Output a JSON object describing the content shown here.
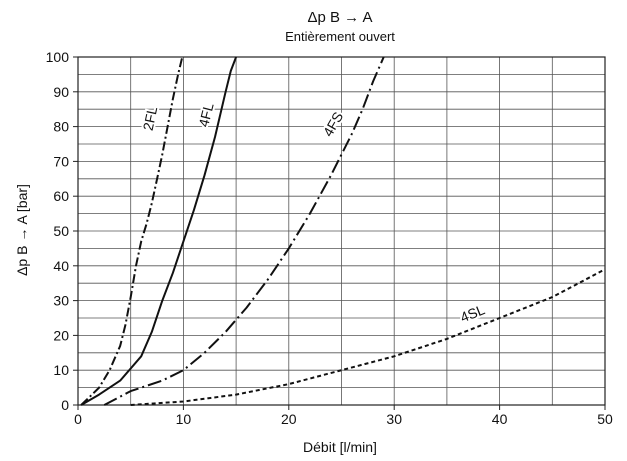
{
  "chart_data": {
    "type": "line",
    "title": "Δp B → A",
    "subtitle": "Entièrement ouvert",
    "xlabel": "Débit [l/min]",
    "ylabel": "Δp B → A [bar]",
    "xlim": [
      0,
      50
    ],
    "ylim": [
      0,
      100
    ],
    "xticks": [
      "0",
      "10",
      "20",
      "30",
      "40",
      "50"
    ],
    "yticks": [
      "0",
      "10",
      "20",
      "30",
      "40",
      "50",
      "60",
      "70",
      "80",
      "90",
      "100"
    ],
    "grid": true,
    "series": [
      {
        "name": "2FL",
        "style": "dash-dot",
        "x": [
          0.3,
          1,
          2,
          3,
          4,
          4.5,
          5,
          5.5,
          6,
          6.5,
          7,
          7.5,
          8,
          8.5,
          9,
          9.5,
          9.9
        ],
        "y": [
          0,
          2,
          5,
          10,
          17,
          23,
          31,
          40,
          47,
          52,
          58,
          65,
          72,
          80,
          88,
          95,
          100
        ]
      },
      {
        "name": "4FL",
        "style": "solid",
        "x": [
          0.3,
          2,
          4,
          6,
          7,
          8,
          9,
          10,
          11,
          12,
          13,
          14,
          14.5,
          15
        ],
        "y": [
          0,
          3,
          7,
          14,
          21,
          30,
          38,
          47,
          56,
          66,
          77,
          90,
          96,
          100
        ]
      },
      {
        "name": "4FS",
        "style": "long-dash-dot",
        "x": [
          2.5,
          5,
          8,
          10,
          12,
          14,
          16,
          18,
          20,
          22,
          24,
          26,
          27,
          28,
          29
        ],
        "y": [
          0,
          4,
          7,
          10,
          15,
          21,
          28,
          36,
          45,
          55,
          66,
          78,
          85,
          93,
          100
        ]
      },
      {
        "name": "4SL",
        "style": "dotted",
        "x": [
          5,
          10,
          15,
          20,
          25,
          30,
          35,
          40,
          45,
          50
        ],
        "y": [
          0,
          1,
          3,
          6,
          10,
          14,
          19,
          25,
          31,
          39
        ]
      }
    ]
  }
}
